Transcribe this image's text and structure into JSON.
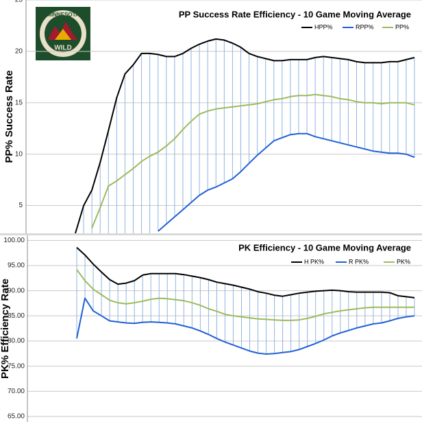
{
  "logo_text": [
    "MINNESOTA",
    "WILD"
  ],
  "chart_data": [
    {
      "type": "line",
      "title": "PP Success Rate Efficiency - 10 Game Moving Average",
      "y_label": "PP% Success Rate",
      "categories": [
        null,
        null,
        null,
        null,
        null,
        null,
        null,
        null,
        null,
        null,
        null,
        null,
        null,
        null,
        null,
        null,
        null,
        null,
        null,
        null,
        null,
        null,
        null,
        null,
        null,
        null,
        null,
        null,
        null,
        null,
        null,
        null,
        null,
        null,
        null,
        null,
        null,
        null,
        null,
        null,
        null,
        null
      ],
      "series": [
        {
          "name": "HPP%",
          "color": "#000000",
          "values": [
            2.3,
            5.0,
            6.5,
            9.2,
            12.3,
            15.5,
            17.8,
            18.7,
            19.8,
            19.8,
            19.7,
            19.5,
            19.5,
            19.8,
            20.3,
            20.7,
            21.0,
            21.2,
            21.1,
            20.8,
            20.4,
            19.8,
            19.5,
            19.3,
            19.1,
            19.1,
            19.2,
            19.2,
            19.2,
            19.4,
            19.5,
            19.4,
            19.3,
            19.2,
            19.0,
            18.9,
            18.9,
            18.9,
            19.0,
            19.0,
            19.2,
            19.4
          ]
        },
        {
          "name": "RPP%",
          "color": "#1f5fd6",
          "values": [
            null,
            null,
            null,
            null,
            null,
            null,
            null,
            null,
            null,
            null,
            2.5,
            3.2,
            3.9,
            4.6,
            5.3,
            6.0,
            6.5,
            6.8,
            7.2,
            7.6,
            8.3,
            9.1,
            9.9,
            10.6,
            11.3,
            11.6,
            11.9,
            12.0,
            12.0,
            11.7,
            11.5,
            11.3,
            11.1,
            10.9,
            10.7,
            10.5,
            10.3,
            10.2,
            10.1,
            10.1,
            10.0,
            9.7
          ]
        },
        {
          "name": "PP%",
          "color": "#9bbb59",
          "values": [
            null,
            null,
            2.8,
            4.8,
            6.9,
            7.4,
            8.0,
            8.6,
            9.3,
            9.8,
            10.2,
            10.8,
            11.5,
            12.4,
            13.2,
            13.9,
            14.2,
            14.4,
            14.5,
            14.6,
            14.7,
            14.8,
            14.9,
            15.1,
            15.3,
            15.4,
            15.6,
            15.7,
            15.7,
            15.8,
            15.7,
            15.6,
            15.4,
            15.3,
            15.1,
            15.0,
            15.0,
            14.9,
            15.0,
            15.0,
            15.0,
            14.8
          ]
        }
      ],
      "ylim": [
        2.3,
        25
      ],
      "yticks": [
        5,
        10,
        15,
        20,
        25
      ],
      "grid": true,
      "hilo_color": "#8eb4e3"
    },
    {
      "type": "line",
      "title": "PK Efficiency - 10 Game Moving Average",
      "y_label": "PK% Efficiency Rate",
      "categories": [
        null,
        null,
        null,
        null,
        null,
        null,
        null,
        null,
        null,
        null,
        null,
        null,
        null,
        null,
        null,
        null,
        null,
        null,
        null,
        null,
        null,
        null,
        null,
        null,
        null,
        null,
        null,
        null,
        null,
        null,
        null,
        null,
        null,
        null,
        null,
        null,
        null,
        null,
        null,
        null,
        null,
        null
      ],
      "series": [
        {
          "name": "H PK%",
          "color": "#000000",
          "values": [
            98.6,
            97.1,
            95.3,
            93.7,
            92.2,
            91.3,
            91.5,
            92.0,
            93.1,
            93.4,
            93.4,
            93.4,
            93.4,
            93.2,
            92.9,
            92.6,
            92.2,
            91.7,
            91.4,
            91.1,
            90.7,
            90.3,
            89.8,
            89.5,
            89.1,
            88.9,
            89.2,
            89.5,
            89.7,
            89.9,
            90.0,
            90.1,
            90.0,
            89.8,
            89.7,
            89.7,
            89.7,
            89.7,
            89.6,
            89.0,
            88.8,
            88.6
          ]
        },
        {
          "name": "R PK%",
          "color": "#1f5fd6",
          "values": [
            80.5,
            88.5,
            86.0,
            85.0,
            84.0,
            83.8,
            83.6,
            83.5,
            83.7,
            83.8,
            83.7,
            83.6,
            83.4,
            83.0,
            82.6,
            82.0,
            81.3,
            80.5,
            79.8,
            79.2,
            78.6,
            78.0,
            77.6,
            77.4,
            77.5,
            77.7,
            77.9,
            78.3,
            78.9,
            79.5,
            80.2,
            81.0,
            81.6,
            82.1,
            82.6,
            83.0,
            83.4,
            83.6,
            84.0,
            84.5,
            84.8,
            85.0
          ]
        },
        {
          "name": "PK%",
          "color": "#9bbb59",
          "values": [
            94.2,
            92.0,
            90.3,
            89.2,
            88.1,
            87.6,
            87.4,
            87.6,
            87.9,
            88.3,
            88.5,
            88.4,
            88.2,
            88.0,
            87.6,
            87.1,
            86.4,
            85.9,
            85.3,
            85.0,
            84.8,
            84.6,
            84.4,
            84.3,
            84.2,
            84.1,
            84.1,
            84.2,
            84.5,
            84.9,
            85.4,
            85.7,
            86.0,
            86.2,
            86.4,
            86.6,
            86.7,
            86.7,
            86.7,
            86.7,
            86.7,
            86.7
          ]
        }
      ],
      "ylim": [
        63.9,
        101
      ],
      "yticks": [
        {
          "value": 65,
          "label": "65.00"
        },
        {
          "value": 70,
          "label": "70.00"
        },
        {
          "value": 75,
          "label": "75.00"
        },
        {
          "value": 80,
          "label": "80.00"
        },
        {
          "value": 85,
          "label": "85.00"
        },
        {
          "value": 90,
          "label": "90.00"
        },
        {
          "value": 95,
          "label": "95.00"
        },
        {
          "value": 100,
          "label": "100.00"
        }
      ],
      "grid": true,
      "hilo_color": "#8eb4e3"
    }
  ]
}
